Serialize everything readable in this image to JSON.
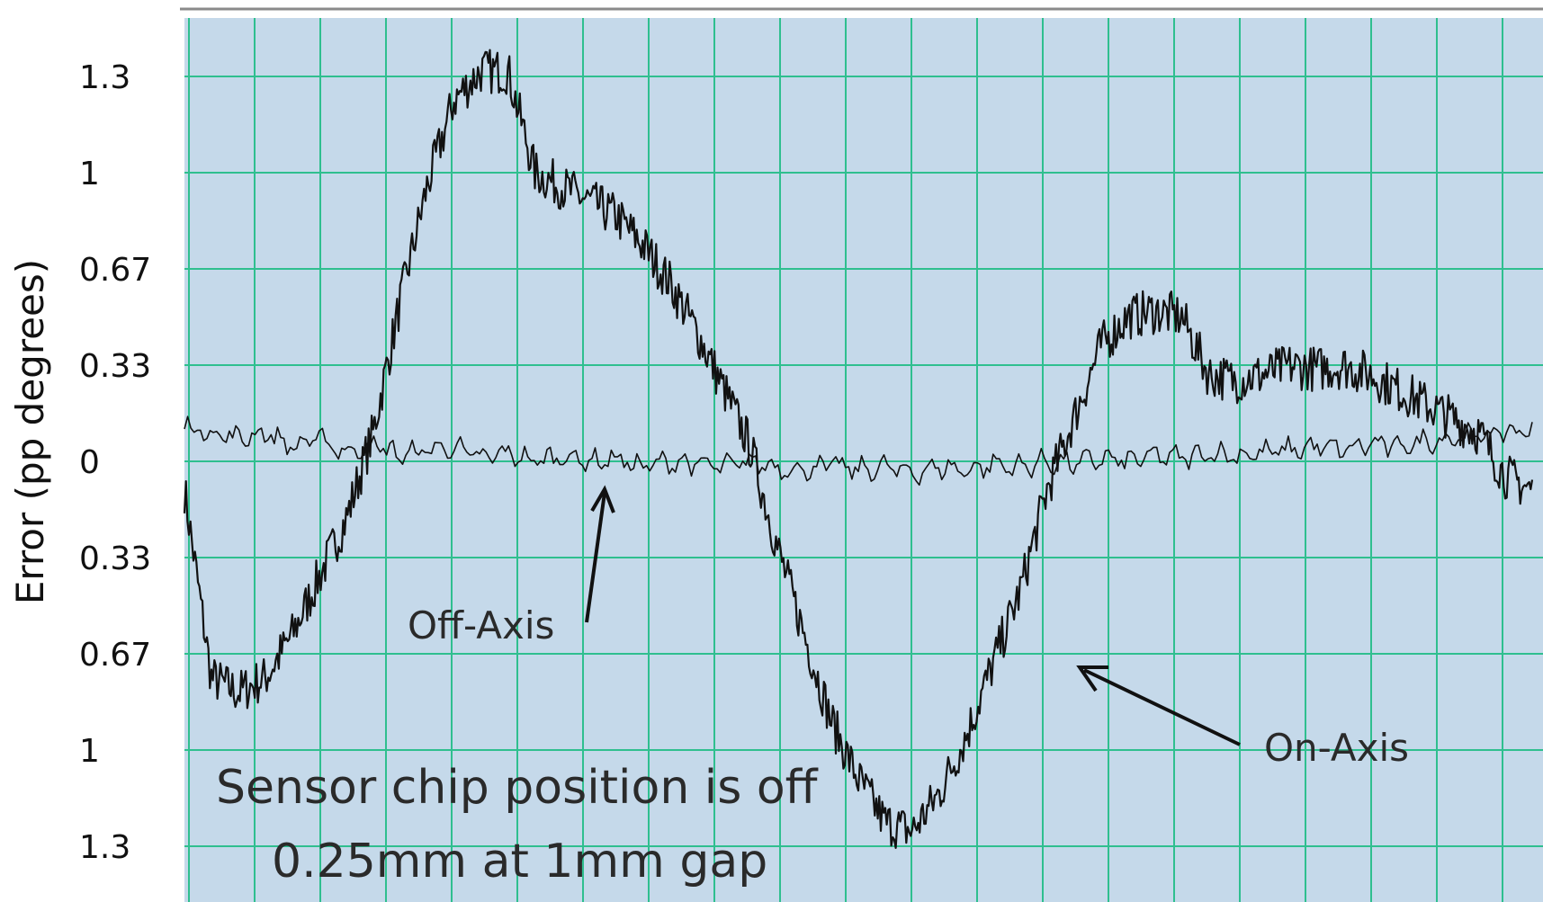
{
  "chart_data": {
    "type": "line",
    "title": "",
    "xlabel": "",
    "ylabel": "Error (pp degrees)",
    "y_tick_labels": [
      "1.3",
      "1",
      "0.67",
      "0.33",
      "0",
      "0.33",
      "0.67",
      "1",
      "1.3"
    ],
    "ylim": [
      -1.33,
      1.33
    ],
    "grid": true,
    "colors": {
      "plot_background": "#c5d9ea",
      "grid": "#2fbf8f",
      "trace": "#111111"
    },
    "x": [
      0,
      2,
      4,
      6,
      8,
      10,
      12,
      14,
      16,
      18,
      20,
      22,
      24,
      26,
      28,
      30,
      32,
      34,
      36,
      38,
      40,
      42,
      44,
      46,
      48,
      50,
      52,
      54,
      56,
      58,
      60,
      62,
      64,
      66,
      68,
      70,
      72,
      74,
      76,
      78,
      80,
      82,
      84,
      86,
      88,
      90,
      92,
      94,
      96,
      98,
      100
    ],
    "series": [
      {
        "name": "On-Axis",
        "values": [
          -0.1,
          -0.75,
          -0.8,
          -0.75,
          -0.6,
          -0.4,
          -0.2,
          0.1,
          0.55,
          0.95,
          1.25,
          1.35,
          1.35,
          1.0,
          0.95,
          0.9,
          0.85,
          0.75,
          0.62,
          0.45,
          0.25,
          0.05,
          -0.3,
          -0.6,
          -0.9,
          -1.1,
          -1.25,
          -1.28,
          -1.15,
          -0.95,
          -0.7,
          -0.45,
          -0.1,
          0.15,
          0.4,
          0.5,
          0.52,
          0.5,
          0.3,
          0.28,
          0.3,
          0.33,
          0.32,
          0.33,
          0.3,
          0.25,
          0.2,
          0.15,
          0.1,
          -0.05,
          -0.1
        ]
      },
      {
        "name": "Off-Axis",
        "values": [
          0.12,
          0.1,
          0.08,
          0.1,
          0.05,
          0.08,
          0.03,
          0.06,
          0.02,
          0.04,
          0.05,
          0.01,
          0.03,
          0.0,
          0.02,
          0.0,
          0.01,
          -0.02,
          0.0,
          -0.01,
          -0.02,
          0.0,
          -0.02,
          -0.03,
          -0.01,
          -0.03,
          -0.02,
          -0.04,
          -0.02,
          -0.03,
          -0.01,
          -0.02,
          0.0,
          -0.01,
          0.01,
          0.0,
          0.02,
          0.01,
          0.03,
          0.02,
          0.03,
          0.04,
          0.05,
          0.04,
          0.06,
          0.05,
          0.07,
          0.08,
          0.09,
          0.1,
          0.11
        ]
      }
    ],
    "annotations": {
      "off_axis": "Off-Axis",
      "on_axis": "On-Axis",
      "caption_line1": "Sensor chip position is off",
      "caption_line2": "0.25mm at 1mm gap"
    }
  }
}
